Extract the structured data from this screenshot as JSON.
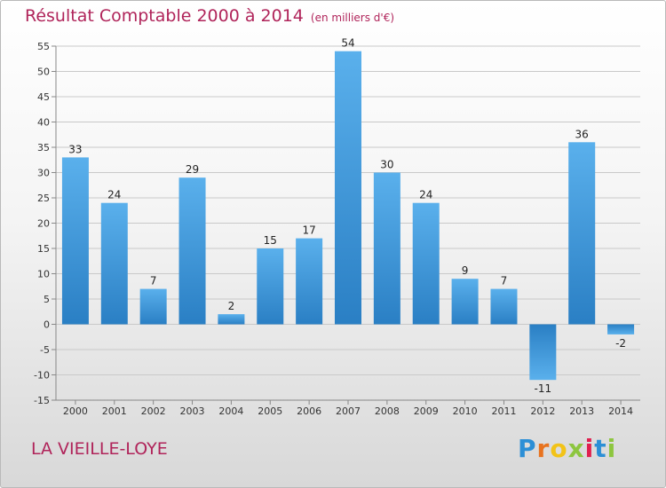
{
  "header": {
    "title": "Résultat Comptable 2000 à 2014",
    "unit": "(en milliers d'€)"
  },
  "footer": {
    "commune": "LA VIEILLE-LOYE",
    "logo_letters": [
      "P",
      "r",
      "o",
      "x",
      "i",
      "t",
      "i"
    ],
    "logo_colors": [
      "#2c8fd6",
      "#e8731f",
      "#f2c318",
      "#8dc63f",
      "#e0204f",
      "#2c8fd6",
      "#8dc63f"
    ]
  },
  "colors": {
    "bar_light": "#5ab0ec",
    "bar_dark": "#2a7fc4",
    "grid": "#c9c9c9",
    "title": "#b0245a"
  },
  "chart_data": {
    "type": "bar",
    "title": "Résultat Comptable 2000 à 2014",
    "subtitle": "(en milliers d'€)",
    "xlabel": "",
    "ylabel": "",
    "categories": [
      "2000",
      "2001",
      "2002",
      "2003",
      "2004",
      "2005",
      "2006",
      "2007",
      "2008",
      "2009",
      "2010",
      "2011",
      "2012",
      "2013",
      "2014"
    ],
    "values": [
      33,
      24,
      7,
      29,
      2,
      15,
      17,
      54,
      30,
      24,
      9,
      7,
      -11,
      36,
      -2
    ],
    "value_labels": [
      "33",
      "24",
      "7",
      "29",
      "2",
      "15",
      "17",
      "54",
      "30",
      "24",
      "9",
      "7",
      "-11",
      "36",
      "-2"
    ],
    "ylim": [
      -15,
      55
    ],
    "yticks": [
      -15,
      -10,
      -5,
      0,
      5,
      10,
      15,
      20,
      25,
      30,
      35,
      40,
      45,
      50,
      55
    ],
    "ytick_labels": [
      "-15",
      "-10",
      "-5",
      "0",
      "5",
      "10",
      "15",
      "20",
      "25",
      "30",
      "35",
      "40",
      "45",
      "50",
      "55"
    ],
    "grid": true,
    "legend": "none"
  }
}
